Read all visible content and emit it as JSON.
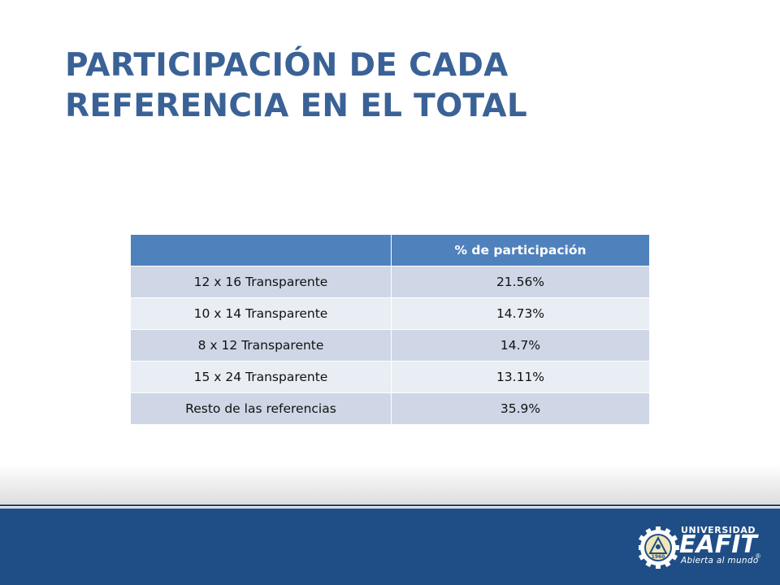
{
  "title": {
    "line1": "PARTICIPACIÓN DE CADA",
    "line2": "REFERENCIA EN EL TOTAL"
  },
  "table": {
    "headers": [
      "",
      "% de participación"
    ],
    "rows": [
      {
        "label": "12 x 16 Transparente",
        "value": "21.56%"
      },
      {
        "label": "10 x 14 Transparente",
        "value": "14.73%"
      },
      {
        "label": "8 x 12 Transparente",
        "value": "14.7%"
      },
      {
        "label": "15 x 24 Transparente",
        "value": "13.11%"
      },
      {
        "label": "Resto de las referencias",
        "value": "35.9%"
      }
    ]
  },
  "logo": {
    "university": "UNIVERSIDAD",
    "name": "EAFIT",
    "tagline": "Abierta al mundo",
    "seal_year": "1960",
    "registered": "®"
  },
  "colors": {
    "title": "#3a6296",
    "header_bg": "#4f81bd",
    "row_dark": "#cfd7e6",
    "row_light": "#e9edf4",
    "footer": "#1f4e86"
  }
}
